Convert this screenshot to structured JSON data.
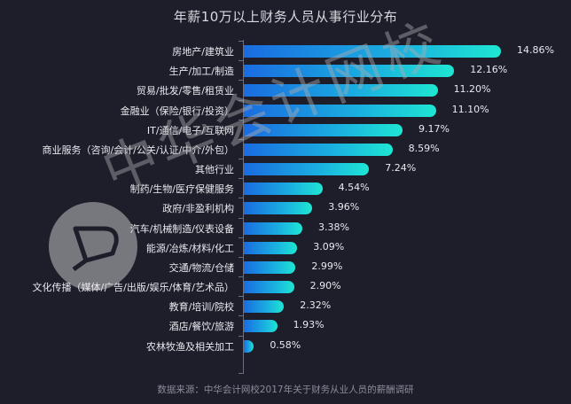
{
  "title": "年薪10万以上财务人员从事行业分布",
  "footer": "数据来源：中华会计网校2017年关于财务从业人员的薪酬调研",
  "watermark": {
    "text": "中华会计网校",
    "logo": "chinaacc-logo-icon"
  },
  "colors": {
    "background": "#1e1e2a",
    "bar_start": "#1a6ce0",
    "bar_end": "#1ee6d2",
    "text": "#e8e8ee",
    "footer": "#8a8c99"
  },
  "chart_data": {
    "type": "bar",
    "orientation": "horizontal",
    "title": "年薪10万以上财务人员从事行业分布",
    "xlabel": "",
    "ylabel": "",
    "unit": "%",
    "categories": [
      "房地产/建筑业",
      "生产/加工/制造",
      "贸易/批发/零售/租赁业",
      "金融业（保险/银行/投资）",
      "IT/通信/电子/互联网",
      "商业服务（咨询/会计/公关/认证/中介/外包）",
      "其他行业",
      "制药/生物/医疗保健服务",
      "政府/非盈利机构",
      "汽车/机械制造/仪表设备",
      "能源/冶炼/材料/化工",
      "交通/物流/仓储",
      "文化传播（媒体/广告/出版/娱乐/体育/艺术品）",
      "教育/培训/院校",
      "酒店/餐饮/旅游",
      "农林牧渔及相关加工"
    ],
    "values": [
      14.86,
      12.16,
      11.2,
      11.1,
      9.17,
      8.59,
      7.24,
      4.54,
      3.96,
      3.38,
      3.09,
      2.99,
      2.9,
      2.32,
      1.93,
      0.58
    ],
    "value_labels": [
      "14.86%",
      "12.16%",
      "11.20%",
      "11.10%",
      "9.17%",
      "8.59%",
      "7.24%",
      "4.54%",
      "3.96%",
      "3.38%",
      "3.09%",
      "2.99%",
      "2.90%",
      "2.32%",
      "1.93%",
      "0.58%"
    ],
    "grid": false,
    "legend": null,
    "source": "数据来源：中华会计网校2017年关于财务从业人员的薪酬调研"
  }
}
